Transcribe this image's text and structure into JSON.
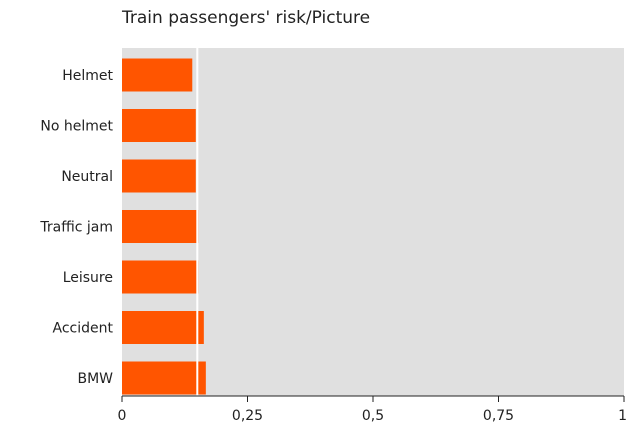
{
  "chart_data": {
    "type": "bar",
    "orientation": "horizontal",
    "title": "Train passengers' risk/Picture",
    "xlabel": "",
    "ylabel": "",
    "categories": [
      "Helmet",
      "No helmet",
      "Neutral",
      "Traffic jam",
      "Leisure",
      "Accident",
      "BMW"
    ],
    "values": [
      0.14,
      0.147,
      0.147,
      0.152,
      0.152,
      0.163,
      0.167
    ],
    "xlim": [
      0,
      1
    ],
    "xticks": [
      0,
      0.25,
      0.5,
      0.75,
      1
    ],
    "xtick_labels": [
      "0",
      "0,25",
      "0,5",
      "0,75",
      "1"
    ],
    "reference_line": 0.15,
    "grid": false,
    "legend": "none",
    "colors": {
      "bar": "#ff5500",
      "plot_background": "#e0e0e0",
      "reference_line": "#ffffff",
      "axis": "#222222"
    }
  }
}
